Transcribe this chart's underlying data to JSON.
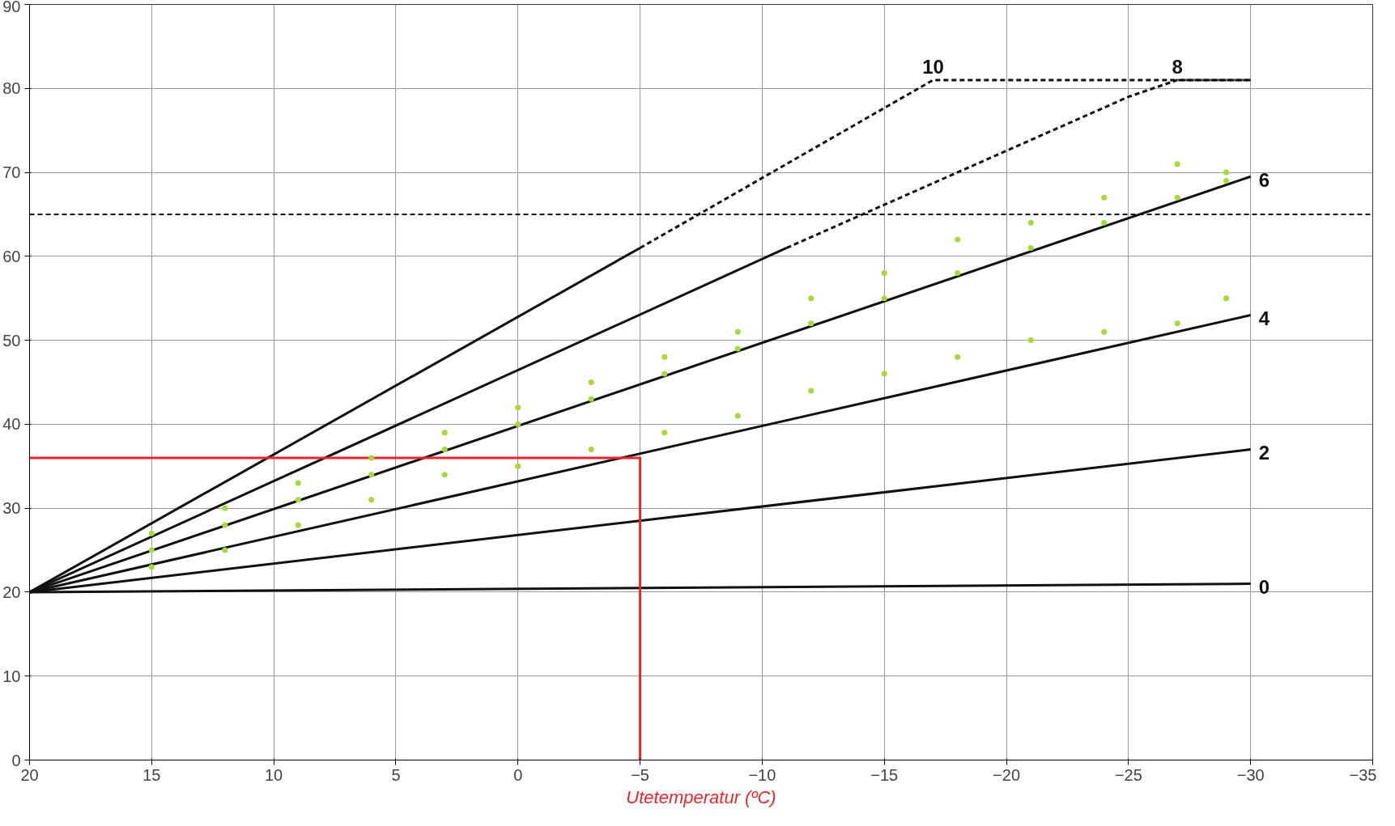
{
  "chart_data": {
    "type": "line",
    "xlabel": "Utetemperatur (ºC)",
    "xlim": [
      20,
      -35
    ],
    "ylim": [
      0,
      90
    ],
    "xticks": [
      20,
      15,
      10,
      5,
      0,
      -5,
      -10,
      -15,
      -20,
      -25,
      -30,
      -35
    ],
    "yticks": [
      0,
      10,
      20,
      30,
      40,
      50,
      60,
      70,
      80,
      90
    ],
    "grid": true,
    "marker": "none",
    "series": [
      {
        "type": "scatter",
        "color": "#a6d93a",
        "marker": "circle",
        "x": [
          15,
          15,
          15,
          12,
          12,
          12,
          9,
          9,
          9,
          6,
          6,
          6,
          3,
          3,
          3,
          0,
          0,
          0,
          -3,
          -3,
          -3,
          -6,
          -6,
          -6,
          -9,
          -9,
          -9,
          -12,
          -12,
          -12,
          -15,
          -15,
          -15,
          -18,
          -18,
          -18,
          -21,
          -21,
          -21,
          -24,
          -24,
          -24,
          -27,
          -27,
          -27,
          -29,
          -29,
          -29
        ],
        "values": [
          23,
          25,
          27,
          25,
          28,
          30,
          28,
          31,
          33,
          31,
          34,
          36,
          34,
          37,
          39,
          35,
          40,
          42,
          37,
          43,
          45,
          39,
          46,
          48,
          41,
          49,
          51,
          44,
          52,
          55,
          46,
          55,
          58,
          48,
          58,
          62,
          50,
          61,
          64,
          51,
          64,
          67,
          52,
          67,
          71,
          55,
          69,
          70
        ]
      },
      {
        "name": "0",
        "color": "#111111",
        "line_style": "solid",
        "x": [
          20,
          -30
        ],
        "values": [
          20,
          21
        ]
      },
      {
        "name": "2",
        "color": "#111111",
        "line_style": "solid",
        "x": [
          20,
          -30
        ],
        "values": [
          20,
          37
        ]
      },
      {
        "name": "4",
        "color": "#111111",
        "line_style": "solid",
        "x": [
          20,
          -30
        ],
        "values": [
          20,
          53
        ]
      },
      {
        "name": "6",
        "color": "#111111",
        "line_style": "solid",
        "x": [
          20,
          -30
        ],
        "values": [
          20,
          69.5
        ]
      },
      {
        "color": "#111111",
        "line_style": "solid",
        "x": [
          20,
          -11
        ],
        "values": [
          20,
          61
        ]
      },
      {
        "name": "8",
        "color": "#111111",
        "line_style": "dashed",
        "x": [
          -11,
          -25,
          -27,
          -30
        ],
        "values": [
          61,
          79,
          81,
          81
        ]
      },
      {
        "color": "#111111",
        "line_style": "solid",
        "x": [
          20,
          -5
        ],
        "values": [
          20,
          61
        ]
      },
      {
        "name": "10",
        "color": "#111111",
        "line_style": "dashed",
        "x": [
          -5,
          -17,
          -30
        ],
        "values": [
          61,
          81,
          81
        ]
      },
      {
        "color": "#e8262b",
        "line_style": "solid",
        "x": [
          -5,
          -5,
          20
        ],
        "values": [
          0,
          36,
          36
        ]
      }
    ],
    "ref_lines": [
      {
        "axis": "y",
        "value": 65,
        "line_style": "dashed",
        "color": "#111111"
      }
    ]
  }
}
